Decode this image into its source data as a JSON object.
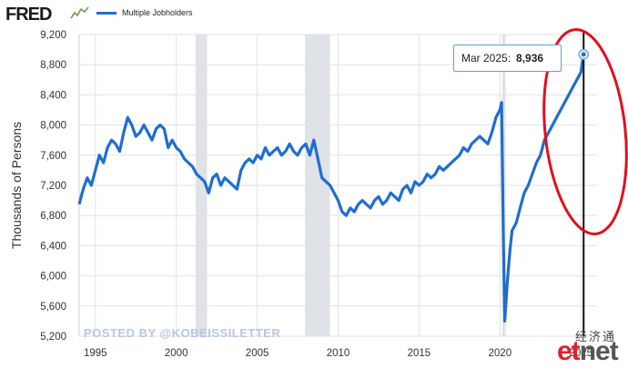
{
  "header": {
    "logo_text": "FRED",
    "legend_label": "Multiple Jobholders",
    "series_color": "#1f6ecf"
  },
  "chart_data": {
    "type": "line",
    "title": "",
    "ylabel": "Thousands of Persons",
    "xlabel": "",
    "ylim": [
      5200,
      9200
    ],
    "xlim": [
      1994,
      2026
    ],
    "grid": true,
    "legend_placement": "top-left",
    "y_ticks": [
      5200,
      5600,
      6000,
      6400,
      6800,
      7200,
      7600,
      8000,
      8400,
      8800,
      9200
    ],
    "y_tick_labels": [
      "5,200",
      "5,600",
      "6,000",
      "6,400",
      "6,800",
      "7,200",
      "7,600",
      "8,000",
      "8,400",
      "8,800",
      "9,200"
    ],
    "x_ticks": [
      1995,
      2000,
      2005,
      2010,
      2015,
      2020,
      2025
    ],
    "x_tick_labels": [
      "1995",
      "2000",
      "2005",
      "2010",
      "2015",
      "2020",
      "2025"
    ],
    "recessions": [
      [
        2001.2,
        2001.9
      ],
      [
        2007.95,
        2009.5
      ],
      [
        2020.15,
        2020.35
      ]
    ],
    "series": [
      {
        "name": "Multiple Jobholders",
        "color": "#1f6ecf",
        "x": [
          1994.0,
          1994.25,
          1994.5,
          1994.75,
          1995.0,
          1995.25,
          1995.5,
          1995.75,
          1996.0,
          1996.25,
          1996.5,
          1996.75,
          1997.0,
          1997.25,
          1997.5,
          1997.75,
          1998.0,
          1998.25,
          1998.5,
          1998.75,
          1999.0,
          1999.25,
          1999.5,
          1999.75,
          2000.0,
          2000.25,
          2000.5,
          2000.75,
          2001.0,
          2001.25,
          2001.5,
          2001.75,
          2002.0,
          2002.25,
          2002.5,
          2002.75,
          2003.0,
          2003.25,
          2003.5,
          2003.75,
          2004.0,
          2004.25,
          2004.5,
          2004.75,
          2005.0,
          2005.25,
          2005.5,
          2005.75,
          2006.0,
          2006.25,
          2006.5,
          2006.75,
          2007.0,
          2007.25,
          2007.5,
          2007.75,
          2008.0,
          2008.25,
          2008.5,
          2008.75,
          2009.0,
          2009.25,
          2009.5,
          2009.75,
          2010.0,
          2010.25,
          2010.5,
          2010.75,
          2011.0,
          2011.25,
          2011.5,
          2011.75,
          2012.0,
          2012.25,
          2012.5,
          2012.75,
          2013.0,
          2013.25,
          2013.5,
          2013.75,
          2014.0,
          2014.25,
          2014.5,
          2014.75,
          2015.0,
          2015.25,
          2015.5,
          2015.75,
          2016.0,
          2016.25,
          2016.5,
          2016.75,
          2017.0,
          2017.25,
          2017.5,
          2017.75,
          2018.0,
          2018.25,
          2018.5,
          2018.75,
          2019.0,
          2019.25,
          2019.5,
          2019.75,
          2020.0,
          2020.1,
          2020.2,
          2020.3,
          2020.45,
          2020.6,
          2020.75,
          2021.0,
          2021.25,
          2021.5,
          2021.75,
          2022.0,
          2022.25,
          2022.5,
          2022.75,
          2023.0,
          2023.25,
          2023.5,
          2023.75,
          2024.0,
          2024.25,
          2024.5,
          2024.75,
          2025.0,
          2025.17
        ],
        "values": [
          6950,
          7150,
          7300,
          7200,
          7400,
          7600,
          7500,
          7700,
          7800,
          7750,
          7650,
          7900,
          8100,
          8000,
          7850,
          7900,
          8000,
          7900,
          7800,
          7950,
          8000,
          7950,
          7700,
          7800,
          7700,
          7650,
          7550,
          7500,
          7450,
          7350,
          7300,
          7250,
          7100,
          7300,
          7350,
          7200,
          7300,
          7250,
          7200,
          7150,
          7400,
          7500,
          7550,
          7500,
          7600,
          7550,
          7700,
          7600,
          7650,
          7700,
          7600,
          7650,
          7750,
          7650,
          7600,
          7700,
          7750,
          7600,
          7800,
          7550,
          7300,
          7250,
          7200,
          7100,
          7000,
          6850,
          6800,
          6900,
          6850,
          6950,
          7000,
          6950,
          6900,
          7000,
          7050,
          6950,
          7000,
          7100,
          7050,
          7000,
          7150,
          7200,
          7100,
          7250,
          7200,
          7250,
          7350,
          7300,
          7350,
          7450,
          7400,
          7450,
          7500,
          7550,
          7600,
          7700,
          7650,
          7750,
          7800,
          7850,
          7800,
          7750,
          7900,
          8100,
          8200,
          8300,
          6600,
          5400,
          5900,
          6300,
          6600,
          6700,
          6900,
          7100,
          7200,
          7350,
          7500,
          7600,
          7800,
          7900,
          8000,
          8100,
          8200,
          8300,
          8400,
          8500,
          8600,
          8700,
          8936
        ]
      }
    ],
    "annotations": [
      {
        "label": "Mar 2025:",
        "value": "8,936"
      },
      {
        "text": "POSTED BY @KOBEISSILETTER"
      }
    ]
  },
  "tooltip": {
    "label": "Mar 2025:",
    "value": "8,936"
  },
  "watermark": {
    "posted_by": "POSTED BY @KOBEISSILETTER",
    "cn": "经济通",
    "et": "et",
    "net": "net"
  },
  "colors": {
    "highlight_circle": "#e0101f",
    "recession_band": "#dfe2e6",
    "grid": "#e2e2e2"
  }
}
